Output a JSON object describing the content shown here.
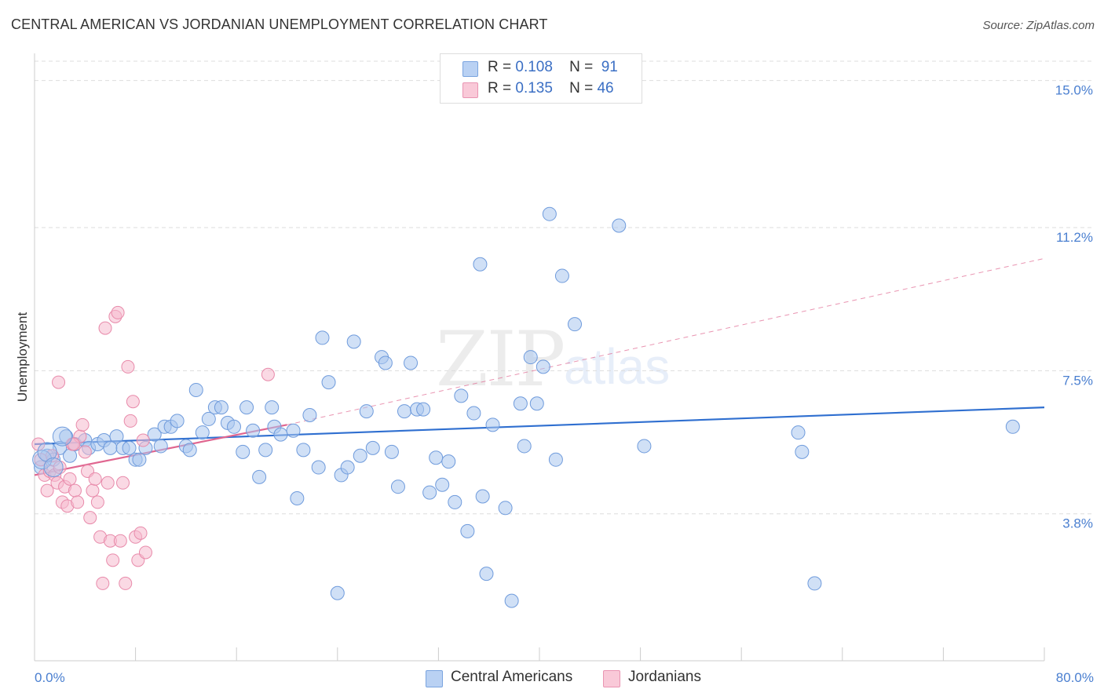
{
  "header": {
    "title": "CENTRAL AMERICAN VS JORDANIAN UNEMPLOYMENT CORRELATION CHART",
    "source": "Source: ZipAtlas.com"
  },
  "watermark": {
    "zip": "ZIP",
    "atlas": "atlas"
  },
  "legend": {
    "rows": [
      {
        "r_label": "R =",
        "r_value": "0.108",
        "n_label": "N =",
        "n_value": "91"
      },
      {
        "r_label": "R =",
        "r_value": "0.135",
        "n_label": "N =",
        "n_value": "46"
      }
    ]
  },
  "bottom_legend": {
    "series1": "Central Americans",
    "series2": "Jordanians"
  },
  "chart_data": {
    "type": "scatter",
    "title": "CENTRAL AMERICAN VS JORDANIAN UNEMPLOYMENT CORRELATION CHART",
    "ylabel": "Unemployment",
    "xlabel": "",
    "xlim": [
      0,
      80
    ],
    "ylim": [
      0,
      15.5
    ],
    "y_ticks": [
      {
        "value": 3.8,
        "label": "3.8%"
      },
      {
        "value": 7.5,
        "label": "7.5%"
      },
      {
        "value": 11.2,
        "label": "11.2%"
      },
      {
        "value": 15.0,
        "label": "15.0%"
      }
    ],
    "x_tick_labels": {
      "min": "0.0%",
      "max": "80.0%"
    },
    "grid": true,
    "legend_position": "top-center",
    "colors": {
      "series1_fill": "#a9c6ee",
      "series1_stroke": "#6f9bdc",
      "series1_line": "#2f6fd0",
      "series2_fill": "#f6b9cd",
      "series2_stroke": "#e88aaa",
      "series2_line": "#e06690",
      "grid": "#dddddd",
      "axis_text": "#4a7fd0"
    },
    "series": [
      {
        "name": "Central Americans",
        "r": 0.108,
        "n": 91,
        "trend": {
          "x0": 0,
          "y0": 5.6,
          "x1": 80,
          "y1": 6.55
        },
        "points": [
          [
            0.5,
            5.0
          ],
          [
            1.0,
            5.3
          ],
          [
            1.5,
            5.2
          ],
          [
            2.0,
            5.5
          ],
          [
            2.5,
            5.8
          ],
          [
            2.8,
            5.3
          ],
          [
            3.2,
            5.6
          ],
          [
            4.0,
            5.7
          ],
          [
            4.3,
            5.5
          ],
          [
            5.0,
            5.6
          ],
          [
            5.5,
            5.7
          ],
          [
            6.0,
            5.5
          ],
          [
            6.5,
            5.8
          ],
          [
            7.0,
            5.5
          ],
          [
            7.5,
            5.5
          ],
          [
            8.0,
            5.2
          ],
          [
            8.3,
            5.2
          ],
          [
            8.8,
            5.5
          ],
          [
            9.5,
            5.85
          ],
          [
            10.0,
            5.55
          ],
          [
            10.3,
            6.05
          ],
          [
            10.8,
            6.05
          ],
          [
            11.3,
            6.2
          ],
          [
            12.0,
            5.55
          ],
          [
            12.3,
            5.45
          ],
          [
            12.8,
            7.0
          ],
          [
            13.3,
            5.9
          ],
          [
            13.8,
            6.25
          ],
          [
            14.3,
            6.55
          ],
          [
            14.8,
            6.55
          ],
          [
            15.3,
            6.15
          ],
          [
            15.8,
            6.05
          ],
          [
            16.5,
            5.4
          ],
          [
            16.8,
            6.55
          ],
          [
            17.3,
            5.95
          ],
          [
            17.8,
            4.75
          ],
          [
            18.3,
            5.45
          ],
          [
            18.8,
            6.55
          ],
          [
            19.0,
            6.05
          ],
          [
            19.5,
            5.85
          ],
          [
            20.5,
            5.95
          ],
          [
            20.8,
            4.2
          ],
          [
            21.3,
            5.45
          ],
          [
            21.8,
            6.35
          ],
          [
            22.5,
            5.0
          ],
          [
            22.8,
            8.35
          ],
          [
            23.3,
            7.2
          ],
          [
            24.0,
            1.75
          ],
          [
            24.3,
            4.8
          ],
          [
            24.8,
            5.0
          ],
          [
            25.3,
            8.25
          ],
          [
            25.8,
            5.3
          ],
          [
            26.3,
            6.45
          ],
          [
            26.8,
            5.5
          ],
          [
            27.5,
            7.85
          ],
          [
            27.8,
            7.7
          ],
          [
            28.3,
            5.4
          ],
          [
            28.8,
            4.5
          ],
          [
            29.3,
            6.45
          ],
          [
            29.8,
            7.7
          ],
          [
            30.3,
            6.5
          ],
          [
            30.8,
            6.5
          ],
          [
            31.3,
            4.35
          ],
          [
            31.8,
            5.25
          ],
          [
            32.3,
            4.55
          ],
          [
            32.8,
            5.15
          ],
          [
            33.3,
            4.1
          ],
          [
            33.8,
            6.85
          ],
          [
            34.3,
            3.35
          ],
          [
            34.8,
            6.4
          ],
          [
            35.3,
            10.25
          ],
          [
            35.5,
            4.25
          ],
          [
            35.8,
            2.25
          ],
          [
            36.3,
            6.1
          ],
          [
            37.3,
            3.95
          ],
          [
            37.8,
            1.55
          ],
          [
            38.5,
            6.65
          ],
          [
            38.8,
            5.55
          ],
          [
            39.3,
            7.85
          ],
          [
            39.8,
            6.65
          ],
          [
            40.3,
            7.6
          ],
          [
            40.8,
            11.55
          ],
          [
            41.3,
            5.2
          ],
          [
            41.8,
            9.95
          ],
          [
            42.8,
            8.7
          ],
          [
            46.3,
            11.25
          ],
          [
            48.3,
            5.55
          ],
          [
            60.5,
            5.9
          ],
          [
            60.8,
            5.4
          ],
          [
            61.8,
            2.0
          ],
          [
            77.5,
            6.05
          ]
        ]
      },
      {
        "name": "Jordanians",
        "r": 0.135,
        "n": 46,
        "trend": {
          "x0": 0,
          "y0": 4.8,
          "x1": 20,
          "y1": 6.1
        },
        "trend_extension": {
          "x0": 20,
          "y0": 6.1,
          "x1": 80,
          "y1": 10.4
        },
        "points": [
          [
            0.3,
            5.6
          ],
          [
            0.5,
            5.2
          ],
          [
            0.8,
            4.8
          ],
          [
            1.0,
            4.4
          ],
          [
            1.2,
            4.9
          ],
          [
            1.4,
            5.3
          ],
          [
            1.6,
            4.8
          ],
          [
            1.8,
            4.6
          ],
          [
            2.0,
            5.0
          ],
          [
            2.2,
            4.1
          ],
          [
            2.4,
            4.5
          ],
          [
            2.6,
            4.0
          ],
          [
            2.8,
            4.7
          ],
          [
            3.0,
            5.6
          ],
          [
            3.2,
            4.4
          ],
          [
            3.4,
            4.1
          ],
          [
            3.6,
            5.8
          ],
          [
            3.8,
            6.1
          ],
          [
            4.0,
            5.4
          ],
          [
            4.2,
            4.9
          ],
          [
            4.4,
            3.7
          ],
          [
            4.6,
            4.4
          ],
          [
            4.8,
            4.7
          ],
          [
            5.0,
            4.1
          ],
          [
            5.2,
            3.2
          ],
          [
            5.4,
            2.0
          ],
          [
            5.6,
            8.6
          ],
          [
            5.8,
            4.6
          ],
          [
            6.0,
            3.1
          ],
          [
            6.2,
            2.6
          ],
          [
            6.4,
            8.9
          ],
          [
            6.6,
            9.0
          ],
          [
            6.8,
            3.1
          ],
          [
            7.0,
            4.6
          ],
          [
            7.2,
            2.0
          ],
          [
            7.4,
            7.6
          ],
          [
            7.6,
            6.2
          ],
          [
            7.8,
            6.7
          ],
          [
            8.0,
            3.2
          ],
          [
            8.2,
            2.6
          ],
          [
            8.4,
            3.3
          ],
          [
            8.6,
            5.7
          ],
          [
            8.8,
            2.8
          ],
          [
            18.5,
            7.4
          ],
          [
            1.9,
            7.2
          ],
          [
            3.1,
            5.6
          ]
        ]
      }
    ]
  }
}
